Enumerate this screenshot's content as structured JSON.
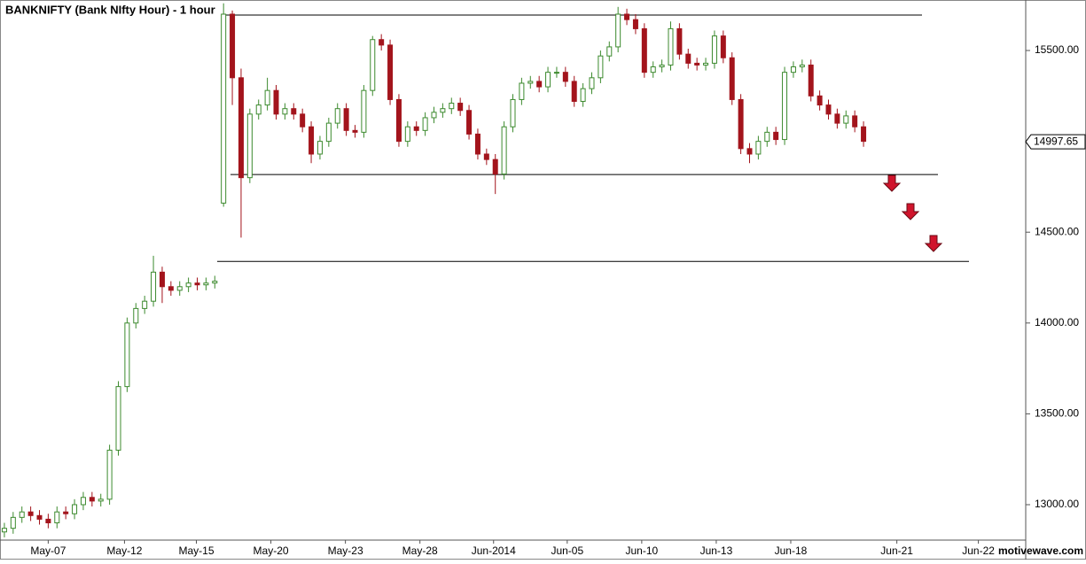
{
  "chart_data": {
    "type": "candlestick",
    "title": "BANKNIFTY (Bank NIfty Hour) - 1 hour",
    "up_color": "#3c8a2e",
    "down_color": "#a3141c",
    "ylim": [
      12805,
      15778
    ],
    "xlim": [
      0,
      117
    ],
    "yticks": [
      {
        "value": 13000,
        "label": "13000.00"
      },
      {
        "value": 13500,
        "label": "13500.00"
      },
      {
        "value": 14000,
        "label": "14000.00"
      },
      {
        "value": 14500,
        "label": "14500.00"
      },
      {
        "value": 15500,
        "label": "15500.00"
      }
    ],
    "xticks": [
      {
        "value": 5.5,
        "label": "May-07"
      },
      {
        "value": 14.2,
        "label": "May-12"
      },
      {
        "value": 22.4,
        "label": "May-15"
      },
      {
        "value": 30.9,
        "label": "May-20"
      },
      {
        "value": 39.4,
        "label": "May-23"
      },
      {
        "value": 47.9,
        "label": "May-28"
      },
      {
        "value": 56.3,
        "label": "Jun-2014"
      },
      {
        "value": 64.7,
        "label": "Jun-05"
      },
      {
        "value": 73.2,
        "label": "Jun-10"
      },
      {
        "value": 81.7,
        "label": "Jun-13"
      },
      {
        "value": 90.2,
        "label": "Jun-18"
      },
      {
        "value": 102.3,
        "label": "Jun-21"
      },
      {
        "value": 111.6,
        "label": "Jun-22"
      }
    ],
    "last_price": 14997.65,
    "levels": [
      15695,
      14817,
      14339
    ],
    "watermark": "motivewave.com",
    "open": [
      12850,
      12870,
      12930,
      12960,
      12940,
      12920,
      12900,
      12960,
      12950,
      13000,
      13040,
      13020,
      13030,
      13300,
      13650,
      14000,
      14080,
      14120,
      14280,
      14200,
      14180,
      14200,
      14220,
      14210,
      14220,
      14660,
      15700,
      15350,
      14800,
      15150,
      15200,
      15280,
      15150,
      15180,
      15150,
      15080,
      14930,
      15000,
      15100,
      15180,
      15060,
      15050,
      15280,
      15560,
      15530,
      15230,
      15000,
      15080,
      15060,
      15130,
      15160,
      15180,
      15210,
      15170,
      15040,
      14930,
      14900,
      14820,
      15080,
      15230,
      15320,
      15330,
      15300,
      15380,
      15380,
      15330,
      15220,
      15290,
      15350,
      15470,
      15520,
      15700,
      15670,
      15620,
      15380,
      15410,
      15420,
      15620,
      15480,
      15430,
      15420,
      15430,
      15580,
      15460,
      15230,
      14960,
      14930,
      15000,
      15050,
      15010,
      15380,
      15410,
      15420,
      15250,
      15200,
      15150,
      15100,
      15140,
      15080
    ],
    "high": [
      12900,
      12960,
      12990,
      12990,
      12970,
      12950,
      12990,
      12990,
      13030,
      13070,
      13070,
      13060,
      13330,
      13680,
      14030,
      14110,
      14150,
      14370,
      14310,
      14230,
      14230,
      14250,
      14250,
      14250,
      14260,
      15760,
      15720,
      15400,
      15180,
      15230,
      15350,
      15310,
      15210,
      15210,
      15180,
      15110,
      15030,
      15130,
      15210,
      15210,
      15090,
      15310,
      15580,
      15590,
      15560,
      15260,
      15110,
      15110,
      15160,
      15190,
      15210,
      15240,
      15240,
      15200,
      15070,
      14960,
      14930,
      15110,
      15260,
      15350,
      15360,
      15360,
      15410,
      15410,
      15410,
      15360,
      15320,
      15380,
      15500,
      15550,
      15740,
      15730,
      15700,
      15650,
      15440,
      15450,
      15660,
      15650,
      15510,
      15460,
      15460,
      15610,
      15610,
      15490,
      15260,
      14990,
      15030,
      15080,
      15080,
      15410,
      15440,
      15450,
      15450,
      15280,
      15230,
      15180,
      15170,
      15170,
      15110
    ],
    "low": [
      12820,
      12840,
      12900,
      12910,
      12890,
      12870,
      12870,
      12920,
      12920,
      12970,
      12990,
      12990,
      13000,
      13270,
      13620,
      13970,
      14050,
      14090,
      14110,
      14150,
      14150,
      14170,
      14180,
      14180,
      14190,
      14640,
      15200,
      14470,
      14770,
      15120,
      15170,
      15120,
      15120,
      15120,
      15050,
      14880,
      14900,
      14970,
      15070,
      15030,
      15020,
      15020,
      15250,
      15500,
      15200,
      14970,
      14970,
      15030,
      15030,
      15100,
      15130,
      15150,
      15140,
      15010,
      14900,
      14870,
      14710,
      14790,
      15050,
      15200,
      15290,
      15270,
      15270,
      15350,
      15300,
      15190,
      15190,
      15260,
      15320,
      15440,
      15490,
      15640,
      15590,
      15350,
      15350,
      15380,
      15390,
      15450,
      15400,
      15390,
      15390,
      15400,
      15430,
      15200,
      14930,
      14880,
      14900,
      14970,
      14980,
      14980,
      15350,
      15380,
      15220,
      15170,
      15120,
      15070,
      15070,
      15050,
      14970
    ],
    "close": [
      12870,
      12930,
      12960,
      12940,
      12920,
      12900,
      12960,
      12950,
      13000,
      13040,
      13020,
      13030,
      13300,
      13650,
      14000,
      14080,
      14120,
      14280,
      14200,
      14180,
      14200,
      14220,
      14210,
      14220,
      14230,
      15700,
      15350,
      14800,
      15150,
      15200,
      15280,
      15150,
      15180,
      15150,
      15080,
      14930,
      15000,
      15100,
      15180,
      15060,
      15050,
      15280,
      15560,
      15530,
      15230,
      15000,
      15080,
      15060,
      15130,
      15160,
      15180,
      15210,
      15170,
      15040,
      14930,
      14900,
      14820,
      15080,
      15230,
      15320,
      15330,
      15300,
      15380,
      15380,
      15330,
      15220,
      15290,
      15350,
      15470,
      15520,
      15700,
      15670,
      15620,
      15380,
      15410,
      15420,
      15620,
      15480,
      15430,
      15420,
      15430,
      15580,
      15460,
      15230,
      14960,
      14930,
      15000,
      15050,
      15010,
      15380,
      15410,
      15420,
      15250,
      15200,
      15150,
      15100,
      15140,
      15080,
      15000
    ]
  }
}
